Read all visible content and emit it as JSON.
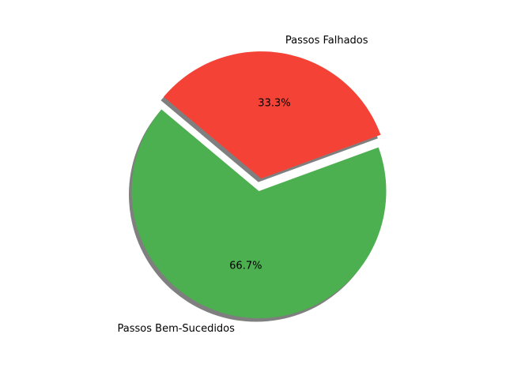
{
  "chart_data": {
    "type": "pie",
    "title": "",
    "categories": [
      "Passos Bem-Sucedidos",
      "Passos Falhados"
    ],
    "values": [
      66.7,
      33.3
    ],
    "percent_labels": [
      "66.7%",
      "33.3%"
    ],
    "colors": [
      "#4caf50",
      "#f44336"
    ],
    "explode": [
      0,
      0.1
    ],
    "start_angle_deg": 140,
    "shadow": true,
    "legend": "none"
  }
}
